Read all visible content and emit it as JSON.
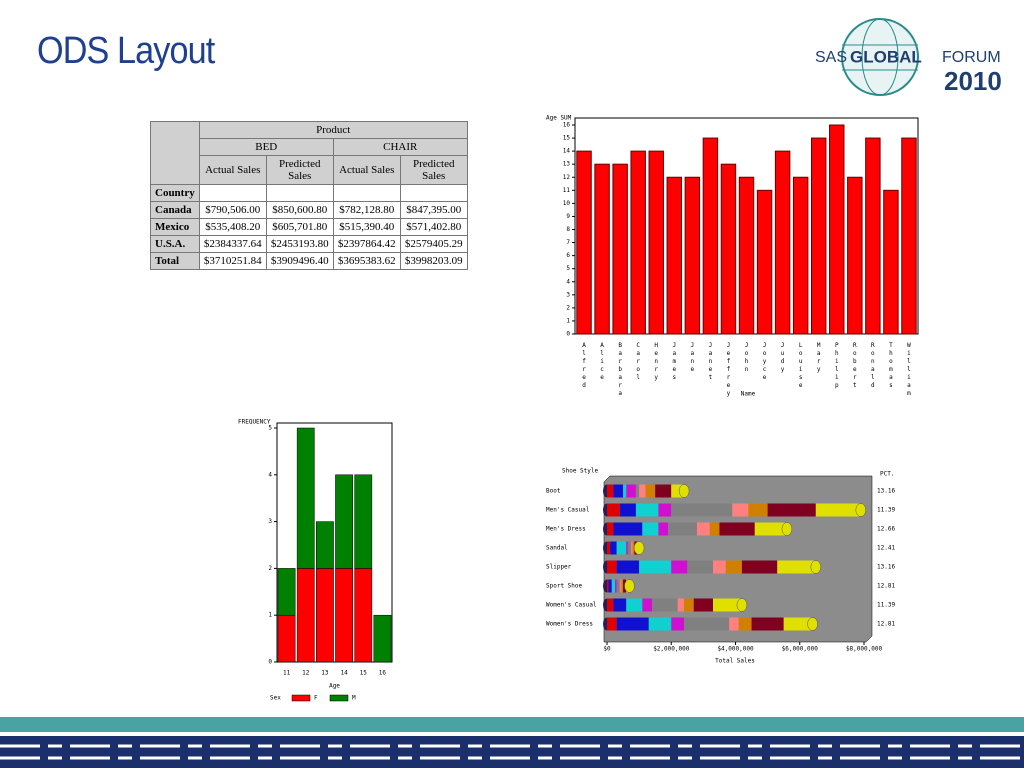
{
  "title": "ODS Layout",
  "logo": {
    "sas": "SAS",
    "global": "GLOBAL",
    "forum": "FORUM",
    "year": "2010"
  },
  "table": {
    "header": {
      "product": "Product",
      "groups": [
        "BED",
        "CHAIR"
      ],
      "columns": [
        "Actual Sales",
        "Predicted Sales",
        "Actual Sales",
        "Predicted Sales"
      ],
      "row_header": "Country"
    },
    "rows": [
      [
        "Canada",
        "$790,506.00",
        "$850,600.80",
        "$782,128.80",
        "$847,395.00"
      ],
      [
        "Mexico",
        "$535,408.20",
        "$605,701.80",
        "$515,390.40",
        "$571,402.80"
      ],
      [
        "U.S.A.",
        "$2384337.64",
        "$2453193.80",
        "$2397864.42",
        "$2579405.29"
      ],
      [
        "Total",
        "$3710251.84",
        "$3909496.40",
        "$3695383.62",
        "$3998203.09"
      ]
    ]
  },
  "chart_data": [
    {
      "type": "bar",
      "y_label": "Age SUM",
      "x_label": "Name",
      "categories": [
        "Alfred",
        "Alice",
        "Barbara",
        "Carol",
        "Henry",
        "James",
        "Jane",
        "Janet",
        "Jeffrey",
        "John",
        "Joyce",
        "Judy",
        "Louise",
        "Mary",
        "Philip",
        "Robert",
        "Ronald",
        "Thomas",
        "William"
      ],
      "values": [
        14,
        13,
        13,
        14,
        14,
        12,
        12,
        15,
        13,
        12,
        11,
        14,
        12,
        15,
        16,
        12,
        15,
        11,
        15
      ],
      "color": "#ff0000",
      "ylim": [
        0,
        16
      ],
      "yticks": [
        0,
        1,
        2,
        3,
        4,
        5,
        6,
        7,
        8,
        9,
        10,
        11,
        12,
        13,
        14,
        15,
        16
      ]
    },
    {
      "type": "stacked_bar",
      "y_label": "FREQUENCY",
      "x_label": "Age",
      "legend_title": "Sex",
      "categories": [
        "11",
        "12",
        "13",
        "14",
        "15",
        "16"
      ],
      "series": [
        {
          "name": "F",
          "color": "#ff0000",
          "values": [
            1,
            2,
            2,
            2,
            2,
            0
          ]
        },
        {
          "name": "M",
          "color": "#008000",
          "values": [
            1,
            3,
            1,
            2,
            2,
            1
          ]
        }
      ],
      "ylim": [
        0,
        5
      ],
      "yticks": [
        0,
        1,
        2,
        3,
        4,
        5
      ]
    },
    {
      "type": "stacked_cylinder",
      "category_label": "Shoe Style",
      "x_label": "Total Sales",
      "pct_label": "PCT.",
      "categories": [
        "Boot",
        "Men's Casual",
        "Men's Dress",
        "Sandal",
        "Slipper",
        "Sport Shoe",
        "Women's Casual",
        "Women's Dress"
      ],
      "pct": [
        13.16,
        11.39,
        12.66,
        12.41,
        13.16,
        12.81,
        11.39,
        12.81
      ],
      "series": [
        {
          "color": "#e00000",
          "values": [
            200000,
            400000,
            200000,
            100000,
            300000,
            50000,
            200000,
            300000
          ]
        },
        {
          "color": "#1010d0",
          "values": [
            300000,
            500000,
            900000,
            200000,
            700000,
            100000,
            400000,
            1000000
          ]
        },
        {
          "color": "#10d0d0",
          "values": [
            100000,
            700000,
            500000,
            300000,
            1000000,
            100000,
            500000,
            700000
          ]
        },
        {
          "color": "#d010d0",
          "values": [
            300000,
            400000,
            300000,
            50000,
            500000,
            50000,
            300000,
            400000
          ]
        },
        {
          "color": "#808080",
          "values": [
            100000,
            1900000,
            900000,
            100000,
            800000,
            100000,
            800000,
            1400000
          ]
        },
        {
          "color": "#ff8080",
          "values": [
            200000,
            500000,
            400000,
            50000,
            400000,
            50000,
            200000,
            300000
          ]
        },
        {
          "color": "#d08000",
          "values": [
            300000,
            600000,
            300000,
            50000,
            500000,
            50000,
            300000,
            400000
          ]
        },
        {
          "color": "#800020",
          "values": [
            500000,
            1500000,
            1100000,
            100000,
            1100000,
            100000,
            600000,
            1000000
          ]
        },
        {
          "color": "#e0e000",
          "values": [
            400000,
            1400000,
            1000000,
            50000,
            1200000,
            100000,
            900000,
            900000
          ]
        }
      ],
      "xlim": [
        0,
        8000000
      ],
      "xticks": [
        {
          "value": 0,
          "label": "$0"
        },
        {
          "value": 2000000,
          "label": "$2,000,000"
        },
        {
          "value": 4000000,
          "label": "$4,000,000"
        },
        {
          "value": 6000000,
          "label": "$6,000,000"
        },
        {
          "value": 8000000,
          "label": "$8,000,000"
        }
      ]
    }
  ]
}
